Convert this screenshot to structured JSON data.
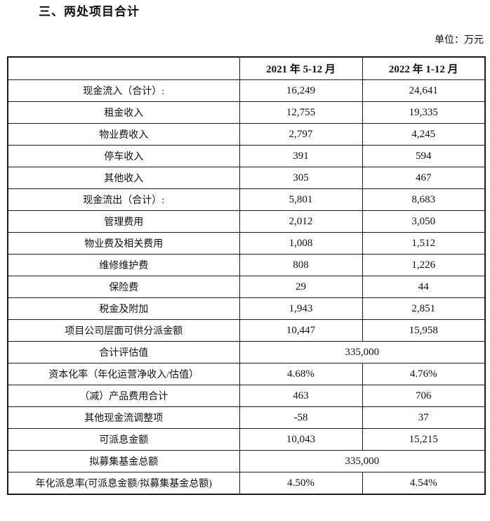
{
  "page": {
    "title": "三、两处项目合计",
    "unit_label": "单位：万元"
  },
  "table": {
    "headers": {
      "label_col": "",
      "col_2021": "2021 年 5-12 月",
      "col_2022": "2022 年 1-12 月"
    },
    "rows": [
      {
        "label": "现金流入（合计）:",
        "v2021": "16,249",
        "v2022": "24,641"
      },
      {
        "label": "租金收入",
        "v2021": "12,755",
        "v2022": "19,335"
      },
      {
        "label": "物业费收入",
        "v2021": "2,797",
        "v2022": "4,245"
      },
      {
        "label": "停车收入",
        "v2021": "391",
        "v2022": "594"
      },
      {
        "label": "其他收入",
        "v2021": "305",
        "v2022": "467"
      },
      {
        "label": "现金流出（合计）:",
        "v2021": "5,801",
        "v2022": "8,683"
      },
      {
        "label": "管理费用",
        "v2021": "2,012",
        "v2022": "3,050"
      },
      {
        "label": "物业费及相关费用",
        "v2021": "1,008",
        "v2022": "1,512"
      },
      {
        "label": "维修维护费",
        "v2021": "808",
        "v2022": "1,226"
      },
      {
        "label": "保险费",
        "v2021": "29",
        "v2022": "44"
      },
      {
        "label": "税金及附加",
        "v2021": "1,943",
        "v2022": "2,851"
      },
      {
        "label": "项目公司层面可供分派金额",
        "v2021": "10,447",
        "v2022": "15,958"
      },
      {
        "label": "合计评估值",
        "merged": "335,000"
      },
      {
        "label": "资本化率（年化运营净收入/估值）",
        "v2021": "4.68%",
        "v2022": "4.76%"
      },
      {
        "label": "（减）产品费用合计",
        "v2021": "463",
        "v2022": "706"
      },
      {
        "label": "其他现金流调整项",
        "v2021": "-58",
        "v2022": "37"
      },
      {
        "label": "可派息金额",
        "v2021": "10,043",
        "v2022": "15,215"
      },
      {
        "label": "拟募集基金总额",
        "merged": "335,000"
      },
      {
        "label": "年化派息率(可派息金额/拟募集基金总额)",
        "v2021": "4.50%",
        "v2022": "4.54%"
      }
    ]
  }
}
